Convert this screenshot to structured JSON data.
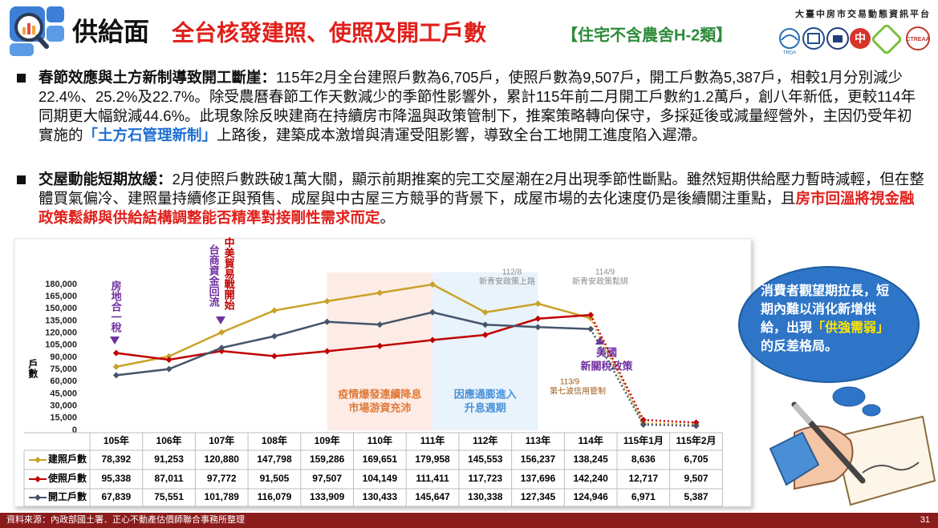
{
  "header": {
    "title": "供給面",
    "subtitle": "全台核發建照、使照及開工戶數",
    "note": "【住宅不含農舍H-2類】",
    "platform": "大臺中房市交易動態資訊平台",
    "logos": [
      "TRDA",
      "CTREAA"
    ]
  },
  "bullets": [
    {
      "lead": "春節效應與土方新制導致開工斷崖：",
      "body": "115年2月全台建照戶數為6,705戶，使照戶數為9,507戶，開工戶數為5,387戶，相較1月分別減少22.4%、25.2%及22.7%。除受農曆春節工作天數減少的季節性影響外，累計115年前二月開工戶數約1.2萬戶，創八年新低，更較114年同期更大幅銳減44.6%。此現象除反映建商在持續房市降溫與政策管制下，推案策略轉向保守，多採延後或減量經營外，主因仍受年初實施的",
      "emphasis": "「土方石管理新制」",
      "tail": "上路後，建築成本激增與清運受阻影響，導致全台工地開工進度陷入遲滯。"
    },
    {
      "lead": "交屋動能短期放緩：",
      "body": "2月使照戶數跌破1萬大關，顯示前期推案的完工交屋潮在2月出現季節性斷點。雖然短期供給壓力暫時減輕，但在整體買氣偏冷、建照量持續修正與預售、成屋與中古屋三方競爭的背景下，成屋市場的去化速度仍是後續關注重點，且",
      "emphasis": "房市回溫將視金融政策鬆綁與供給結構調整能否精準對接剛性需求而定",
      "tail": "。"
    }
  ],
  "chart_data": {
    "type": "line",
    "y_label": "戶數",
    "categories": [
      "105年",
      "106年",
      "107年",
      "108年",
      "109年",
      "110年",
      "111年",
      "112年",
      "113年",
      "114年",
      "115年1月",
      "115年2月"
    ],
    "series": [
      {
        "name": "建照戶數",
        "color": "#c9a227",
        "values": [
          78392,
          91253,
          120880,
          147798,
          159286,
          169651,
          179958,
          145553,
          156237,
          138245,
          8636,
          6705
        ],
        "value_labels": [
          "78,392",
          "91,253",
          "120,880",
          "147,798",
          "159,286",
          "169,651",
          "179,958",
          "145,553",
          "156,237",
          "138,245",
          "8,636",
          "6,705"
        ]
      },
      {
        "name": "使照戶數",
        "color": "#c00000",
        "values": [
          95338,
          87011,
          97772,
          91505,
          97507,
          104149,
          111411,
          117723,
          137696,
          142240,
          12717,
          9507
        ],
        "value_labels": [
          "95,338",
          "87,011",
          "97,772",
          "91,505",
          "97,507",
          "104,149",
          "111,411",
          "117,723",
          "137,696",
          "142,240",
          "12,717",
          "9,507"
        ]
      },
      {
        "name": "開工戶數",
        "color": "#44546a",
        "values": [
          67839,
          75551,
          101789,
          116079,
          133909,
          130433,
          145647,
          130338,
          127345,
          124946,
          6971,
          5387
        ],
        "value_labels": [
          "67,839",
          "75,551",
          "101,789",
          "116,079",
          "133,909",
          "130,433",
          "145,647",
          "130,338",
          "127,345",
          "124,946",
          "6,971",
          "5,387"
        ]
      }
    ],
    "ylim": [
      0,
      180000
    ],
    "yticks": [
      0,
      {
        "value": 15000,
        "label": "15,000"
      },
      {
        "value": 30000,
        "label": "30,000"
      },
      {
        "value": 45000,
        "label": "45,000"
      },
      {
        "value": 60000,
        "label": "60,000"
      },
      {
        "value": 75000,
        "label": "75,000"
      },
      {
        "value": 90000,
        "label": "90,000"
      },
      {
        "value": 105000,
        "label": "105,000"
      },
      {
        "value": 120000,
        "label": "120,000"
      },
      {
        "value": 135000,
        "label": "135,000"
      },
      {
        "value": 150000,
        "label": "150,000"
      },
      {
        "value": 165000,
        "label": "165,000"
      },
      {
        "value": 180000,
        "label": "180,000"
      }
    ],
    "regions": [
      {
        "lines": [
          "疫情爆發連續降息",
          "市場游資充沛"
        ],
        "fill": "#fdece6",
        "color": "#e07b39"
      },
      {
        "lines": [
          "因應通膨進入",
          "升息週期"
        ],
        "fill": "#e8f3fb",
        "color": "#4a90d9"
      }
    ],
    "annotations": [
      {
        "text": "房地合一稅",
        "color": "#7030a0"
      },
      {
        "text": "台商資金回流",
        "color": "#7030a0"
      },
      {
        "text": "中美貿易戰開始",
        "color": "#c00000"
      },
      {
        "date": "112/8",
        "text": "新青安政策上路",
        "color": "#8c8c8c"
      },
      {
        "date": "114/9",
        "text": "新青安政策鬆綁",
        "color": "#8c8c8c"
      },
      {
        "date": "113/9",
        "text": "第七波信用管制",
        "color": "#9c5a1e"
      },
      {
        "lines": [
          "美國",
          "新關稅政策"
        ],
        "color": "#7030a0"
      }
    ]
  },
  "callout": {
    "text": "消費者觀望期拉長，短期內難以消化新增供給，出現",
    "highlight": "「供強需弱」",
    "tail": "的反差格局。"
  },
  "footer": {
    "source": "資料來源：內政部國土署．正心不動產估價師聯合事務所整理",
    "page": "31"
  }
}
